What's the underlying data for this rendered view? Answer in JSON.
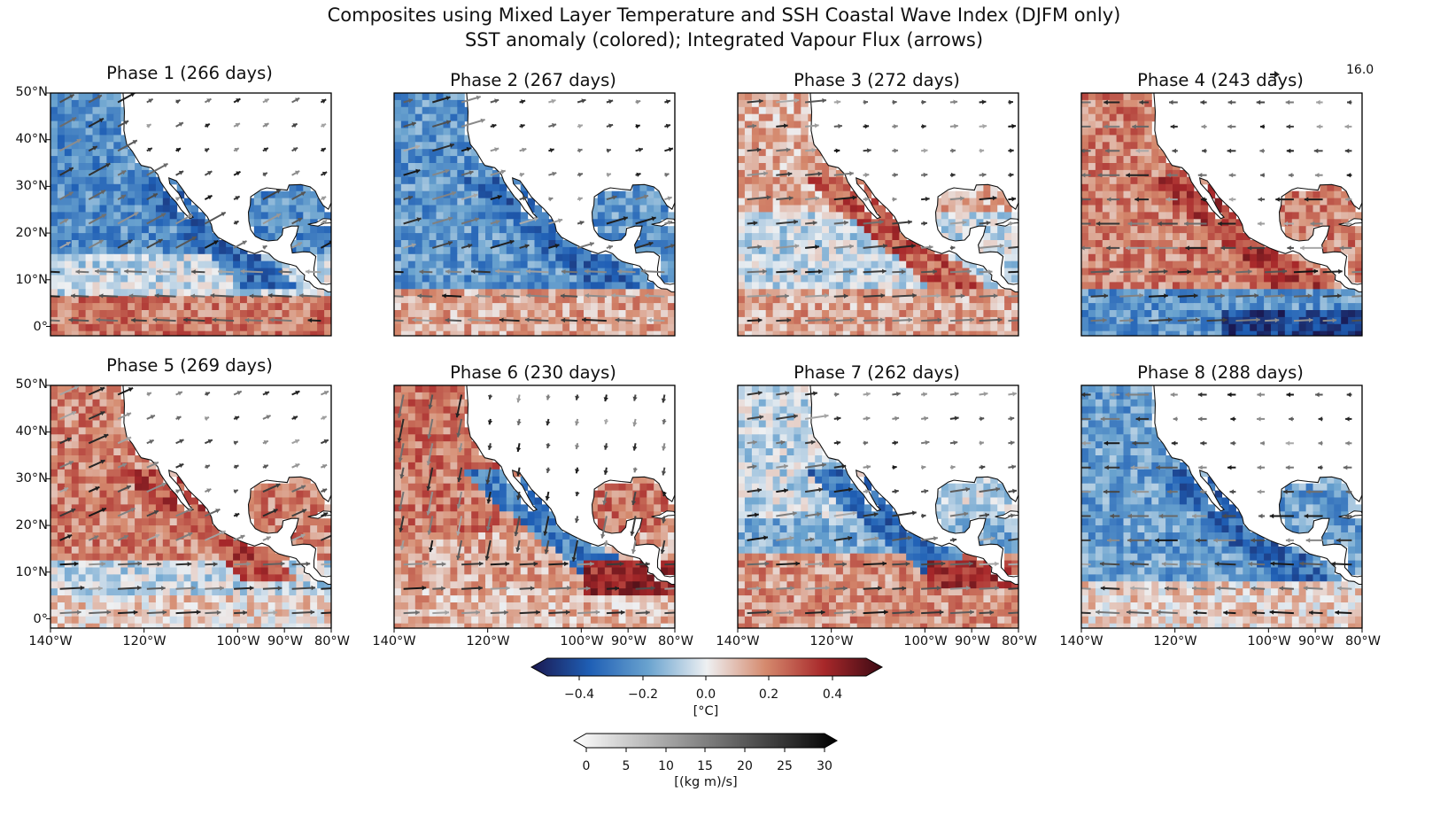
{
  "figure": {
    "title_line1": "Composites using Mixed Layer Temperature and SSH Coastal Wave Index (DJFM only)",
    "title_line2": "SST anomaly (colored); Integrated Vapour Flux (arrows)",
    "reference_arrow_label": "16.0"
  },
  "panels": [
    {
      "phase": "Phase 1 (266 days)",
      "sst_tendency": "cool-north-warm-equator"
    },
    {
      "phase": "Phase 2 (267 days)",
      "sst_tendency": "cool"
    },
    {
      "phase": "Phase 3 (272 days)",
      "sst_tendency": "mixed-warm-coast"
    },
    {
      "phase": "Phase 4 (243 days)",
      "sst_tendency": "warm-north-cool-equator"
    },
    {
      "phase": "Phase 5 (269 days)",
      "sst_tendency": "warm"
    },
    {
      "phase": "Phase 6 (230 days)",
      "sst_tendency": "warm-north-cool-coast"
    },
    {
      "phase": "Phase 7 (262 days)",
      "sst_tendency": "cool-coast-warm-south"
    },
    {
      "phase": "Phase 8 (288 days)",
      "sst_tendency": "cool"
    }
  ],
  "axes": {
    "lat_labels": [
      "50°N",
      "40°N",
      "30°N",
      "20°N",
      "10°N",
      "0°"
    ],
    "lon_labels": [
      "140°W",
      "120°W",
      "100°W",
      "90°W",
      "80°W"
    ]
  },
  "colorbar_sst": {
    "ticks": [
      "−0.4",
      "−0.2",
      "0.0",
      "0.2",
      "0.4"
    ],
    "unit": "[°C]",
    "colors": [
      "#1a1850",
      "#1f5fb5",
      "#6aa3cf",
      "#eef0f2",
      "#d58a6e",
      "#a8282a",
      "#3d0a14"
    ]
  },
  "colorbar_flux": {
    "ticks": [
      "0",
      "5",
      "10",
      "15",
      "20",
      "25",
      "30"
    ],
    "unit": "[(kg m)/s]",
    "colors": [
      "#ffffff",
      "#000000"
    ]
  }
}
